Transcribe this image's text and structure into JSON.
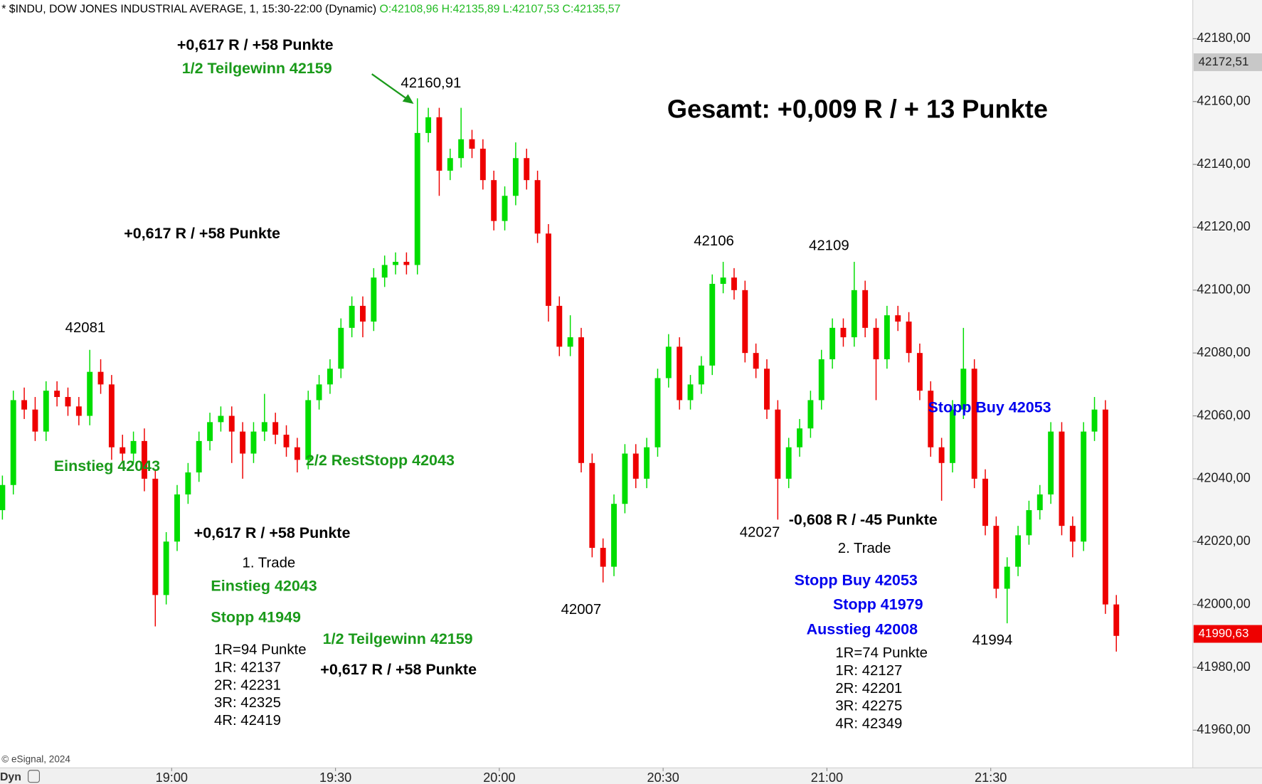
{
  "chart_data": {
    "type": "candlestick",
    "title": "* $INDU, DOW JONES INDUSTRIAL AVERAGE, 1, 15:30-22:00 (Dynamic)",
    "subtitle": "O:42108,96 H:42135,89 L:42107,53 C:42135,57",
    "source": "© eSignal, 2024",
    "footer_label": "Dyn",
    "up_color": "#00dd00",
    "down_color": "#ee0000",
    "xlim": [
      1108.56,
      1327.0
    ],
    "xticks": [
      {
        "value": 1140,
        "label": "19:00"
      },
      {
        "value": 1170,
        "label": "19:30"
      },
      {
        "value": 1200,
        "label": "20:00"
      },
      {
        "value": 1230,
        "label": "20:30"
      },
      {
        "value": 1260,
        "label": "21:00"
      },
      {
        "value": 1290,
        "label": "21:30"
      }
    ],
    "ylim": [
      41948,
      42192.3
    ],
    "yticks": [
      {
        "value": 41960,
        "label": "41960,00"
      },
      {
        "value": 41980,
        "label": "41980,00"
      },
      {
        "value": 42000,
        "label": "42000,00"
      },
      {
        "value": 42020,
        "label": "42020,00"
      },
      {
        "value": 42040,
        "label": "42040,00"
      },
      {
        "value": 42060,
        "label": "42060,00"
      },
      {
        "value": 42080,
        "label": "42080,00"
      },
      {
        "value": 42100,
        "label": "42100,00"
      },
      {
        "value": 42120,
        "label": "42120,00"
      },
      {
        "value": 42140,
        "label": "42140,00"
      },
      {
        "value": 42160,
        "label": "42160,00"
      },
      {
        "value": 42180,
        "label": "42180,00"
      }
    ],
    "markers": [
      {
        "value": 42172.51,
        "label": "42172,51",
        "color": "#c8c8c8"
      },
      {
        "value": 41990.63,
        "label": "41990,63",
        "color": "#ee0000"
      }
    ],
    "x": [
      1109,
      1111,
      1113,
      1115,
      1117,
      1119,
      1121,
      1123,
      1125,
      1127,
      1129,
      1131,
      1133,
      1135,
      1137,
      1139,
      1141,
      1143,
      1145,
      1147,
      1149,
      1151,
      1153,
      1155,
      1157,
      1159,
      1161,
      1163,
      1165,
      1167,
      1169,
      1171,
      1173,
      1175,
      1177,
      1179,
      1181,
      1183,
      1185,
      1187,
      1189,
      1191,
      1193,
      1195,
      1197,
      1199,
      1201,
      1203,
      1205,
      1207,
      1209,
      1211,
      1213,
      1215,
      1217,
      1219,
      1221,
      1223,
      1225,
      1227,
      1229,
      1231,
      1233,
      1235,
      1237,
      1239,
      1241,
      1243,
      1245,
      1247,
      1249,
      1251,
      1253,
      1255,
      1257,
      1259,
      1261,
      1263,
      1265,
      1267,
      1269,
      1271,
      1273,
      1275,
      1277,
      1279,
      1281,
      1283,
      1285,
      1287,
      1289,
      1291,
      1293,
      1295,
      1297,
      1299,
      1301,
      1303,
      1305,
      1307,
      1309,
      1311,
      1313
    ],
    "values": [
      [
        42030,
        42041,
        42027,
        42038
      ],
      [
        42038,
        42068,
        42035,
        42065
      ],
      [
        42065,
        42069,
        42059,
        42062
      ],
      [
        42062,
        42066,
        42052,
        42055
      ],
      [
        42055,
        42071,
        42052,
        42068
      ],
      [
        42068,
        42071,
        42063,
        42066
      ],
      [
        42066,
        42069,
        42060,
        42063
      ],
      [
        42063,
        42066,
        42057,
        42060
      ],
      [
        42060,
        42081,
        42057,
        42074
      ],
      [
        42074,
        42078,
        42067,
        42070
      ],
      [
        42070,
        42073,
        42046,
        42050
      ],
      [
        42050,
        42054,
        42045,
        42048
      ],
      [
        42048,
        42055,
        42045,
        42052
      ],
      [
        42052,
        42056,
        42036,
        42040
      ],
      [
        42040,
        42043,
        41993,
        42003
      ],
      [
        42003,
        42023,
        42000,
        42020
      ],
      [
        42020,
        42038,
        42017,
        42035
      ],
      [
        42035,
        42045,
        42032,
        42042
      ],
      [
        42042,
        42055,
        42039,
        42052
      ],
      [
        42052,
        42061,
        42049,
        42058
      ],
      [
        42058,
        42063,
        42055,
        42060
      ],
      [
        42060,
        42063,
        42045,
        42055
      ],
      [
        42055,
        42058,
        42040,
        42048
      ],
      [
        42048,
        42058,
        42045,
        42055
      ],
      [
        42055,
        42067,
        42052,
        42058
      ],
      [
        42058,
        42061,
        42051,
        42054
      ],
      [
        42054,
        42057,
        42047,
        42050
      ],
      [
        42050,
        42053,
        42042,
        42046
      ],
      [
        42046,
        42068,
        42043,
        42065
      ],
      [
        42065,
        42073,
        42062,
        42070
      ],
      [
        42070,
        42078,
        42067,
        42075
      ],
      [
        42075,
        42091,
        42072,
        42088
      ],
      [
        42088,
        42098,
        42085,
        42095
      ],
      [
        42095,
        42098,
        42085,
        42090
      ],
      [
        42090,
        42107,
        42087,
        42104
      ],
      [
        42104,
        42111,
        42101,
        42108
      ],
      [
        42108,
        42112,
        42105,
        42109
      ],
      [
        42109,
        42112,
        42105,
        42108
      ],
      [
        42108,
        42161,
        42105,
        42150
      ],
      [
        42150,
        42158,
        42147,
        42155
      ],
      [
        42155,
        42158,
        42130,
        42138
      ],
      [
        42138,
        42145,
        42135,
        42142
      ],
      [
        42142,
        42158,
        42139,
        42148
      ],
      [
        42148,
        42151,
        42142,
        42145
      ],
      [
        42145,
        42148,
        42132,
        42135
      ],
      [
        42135,
        42138,
        42119,
        42122
      ],
      [
        42122,
        42133,
        42119,
        42130
      ],
      [
        42130,
        42147,
        42127,
        42142
      ],
      [
        42142,
        42145,
        42132,
        42135
      ],
      [
        42135,
        42138,
        42115,
        42118
      ],
      [
        42118,
        42121,
        42090,
        42095
      ],
      [
        42095,
        42098,
        42079,
        42082
      ],
      [
        42082,
        42092,
        42079,
        42085
      ],
      [
        42085,
        42088,
        42042,
        42045
      ],
      [
        42045,
        42048,
        42015,
        42018
      ],
      [
        42018,
        42021,
        42007,
        42012
      ],
      [
        42012,
        42035,
        42009,
        42032
      ],
      [
        42032,
        42051,
        42029,
        42048
      ],
      [
        42048,
        42051,
        42037,
        42040
      ],
      [
        42040,
        42053,
        42037,
        42050
      ],
      [
        42050,
        42075,
        42047,
        42072
      ],
      [
        42072,
        42086,
        42069,
        42082
      ],
      [
        42082,
        42085,
        42062,
        42065
      ],
      [
        42065,
        42073,
        42062,
        42070
      ],
      [
        42070,
        42079,
        42067,
        42076
      ],
      [
        42076,
        42105,
        42073,
        42102
      ],
      [
        42102,
        42109,
        42099,
        42104
      ],
      [
        42104,
        42107,
        42097,
        42100
      ],
      [
        42100,
        42103,
        42077,
        42080
      ],
      [
        42080,
        42083,
        42072,
        42075
      ],
      [
        42075,
        42078,
        42059,
        42062
      ],
      [
        42062,
        42065,
        42027,
        42040
      ],
      [
        42040,
        42053,
        42037,
        42050
      ],
      [
        42050,
        42059,
        42047,
        42056
      ],
      [
        42056,
        42068,
        42053,
        42065
      ],
      [
        42065,
        42081,
        42062,
        42078
      ],
      [
        42078,
        42091,
        42075,
        42088
      ],
      [
        42088,
        42091,
        42082,
        42085
      ],
      [
        42085,
        42109,
        42082,
        42100
      ],
      [
        42100,
        42103,
        42085,
        42088
      ],
      [
        42088,
        42091,
        42065,
        42078
      ],
      [
        42078,
        42095,
        42075,
        42092
      ],
      [
        42092,
        42095,
        42087,
        42090
      ],
      [
        42090,
        42093,
        42077,
        42080
      ],
      [
        42080,
        42083,
        42065,
        42068
      ],
      [
        42068,
        42071,
        42047,
        42050
      ],
      [
        42050,
        42053,
        42033,
        42045
      ],
      [
        42045,
        42065,
        42042,
        42062
      ],
      [
        42062,
        42088,
        42059,
        42075
      ],
      [
        42075,
        42078,
        42037,
        42040
      ],
      [
        42040,
        42043,
        42022,
        42025
      ],
      [
        42025,
        42028,
        42002,
        42005
      ],
      [
        42005,
        42015,
        41994,
        42012
      ],
      [
        42012,
        42025,
        42009,
        42022
      ],
      [
        42022,
        42033,
        42019,
        42030
      ],
      [
        42030,
        42038,
        42027,
        42035
      ],
      [
        42035,
        42058,
        42032,
        42055
      ],
      [
        42055,
        42058,
        42022,
        42025
      ],
      [
        42025,
        42028,
        42015,
        42020
      ],
      [
        42020,
        42058,
        42017,
        42055
      ],
      [
        42055,
        42066,
        42052,
        42062
      ],
      [
        42062,
        42065,
        41997,
        42000
      ],
      [
        42000,
        42003,
        41985,
        41990
      ]
    ],
    "annotations": [
      "+0,617 R / +58 Punkte",
      "1/2 Teilgewinn 42159",
      "42160,91",
      "Gesamt: +0,009 R / + 13 Punkte",
      "+0,617 R / +58 Punkte",
      "42081",
      "42106",
      "42109",
      "Stopp Buy 42053",
      "Einstieg 42043",
      "2/2 RestStopp 42043",
      "-0,608 R / -45 Punkte",
      "42027",
      "2. Trade",
      "+0,617 R / +58 Punkte",
      "1. Trade",
      "Einstieg 42043",
      "Stopp 41949",
      "1R=94 Punkte",
      "1R: 42137",
      "2R: 42231",
      "3R: 42325",
      "4R: 42419",
      "1/2 Teilgewinn 42159",
      "+0,617 R / +58 Punkte",
      "42007",
      "Stopp Buy 42053",
      "Stopp 41979",
      "Ausstieg 42008",
      "1R=74 Punkte",
      "1R: 42127",
      "2R: 42201",
      "3R: 42275",
      "4R: 42349",
      "41994"
    ]
  }
}
